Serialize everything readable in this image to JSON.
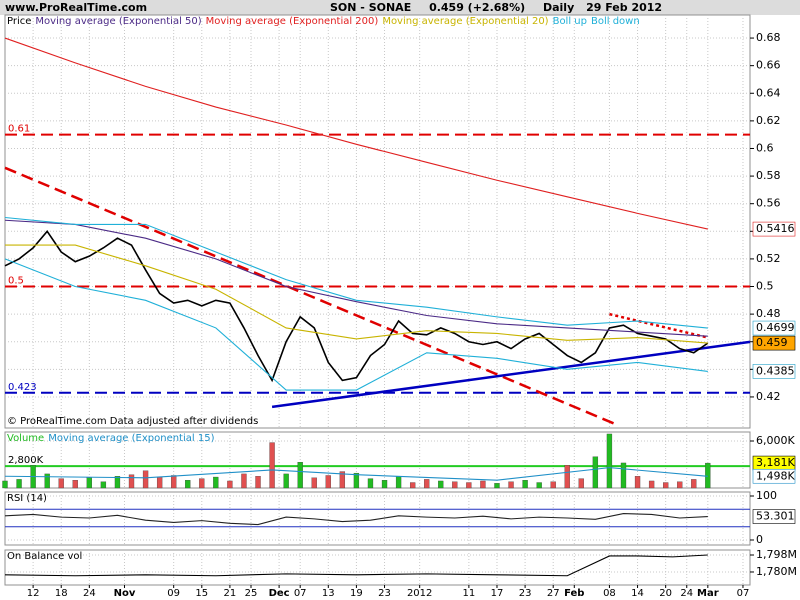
{
  "header": {
    "site": "www.ProRealTime.com",
    "title": "SON - SONAE",
    "price_text": "0.459 (+2.68%)",
    "period": "Daily",
    "date": "29 Feb 2012"
  },
  "chart_data": [
    {
      "type": "line",
      "note": "© ProRealTime.com Data adjusted after dividends",
      "grid": true,
      "xlim": [
        0,
        106
      ],
      "xticks": [
        {
          "value": 4,
          "label": "12"
        },
        {
          "value": 8,
          "label": "18"
        },
        {
          "value": 12,
          "label": "24"
        },
        {
          "value": 17,
          "label": "Nov"
        },
        {
          "value": 24,
          "label": "09"
        },
        {
          "value": 28,
          "label": "15"
        },
        {
          "value": 32,
          "label": "21"
        },
        {
          "value": 35,
          "label": "25"
        },
        {
          "value": 39,
          "label": "Dec"
        },
        {
          "value": 42,
          "label": "07"
        },
        {
          "value": 46,
          "label": "13"
        },
        {
          "value": 50,
          "label": "19"
        },
        {
          "value": 54,
          "label": "23"
        },
        {
          "value": 59,
          "label": "2012"
        },
        {
          "value": 66,
          "label": "11"
        },
        {
          "value": 70,
          "label": "17"
        },
        {
          "value": 74,
          "label": "23"
        },
        {
          "value": 78,
          "label": "27"
        },
        {
          "value": 81,
          "label": "Feb"
        },
        {
          "value": 86,
          "label": "08"
        },
        {
          "value": 90,
          "label": "14"
        },
        {
          "value": 94,
          "label": "20"
        },
        {
          "value": 97,
          "label": "24"
        },
        {
          "value": 100,
          "label": "Mar"
        },
        {
          "value": 105,
          "label": "07"
        }
      ],
      "ylim": [
        0.3975,
        0.6967
      ],
      "yticks": [
        0.42,
        0.44,
        0.46,
        0.48,
        0.5,
        0.52,
        0.54,
        0.56,
        0.58,
        0.6,
        0.62,
        0.64,
        0.66,
        0.68
      ],
      "series": [
        {
          "name": "Price",
          "color": "#000000",
          "x": [
            0,
            2,
            4,
            6,
            8,
            10,
            12,
            14,
            16,
            18,
            20,
            22,
            24,
            26,
            28,
            30,
            32,
            34,
            36,
            38,
            40,
            42,
            44,
            46,
            48,
            50,
            52,
            54,
            56,
            58,
            60,
            62,
            64,
            66,
            68,
            70,
            72,
            74,
            76,
            78,
            80,
            82,
            84,
            86,
            88,
            90,
            92,
            94,
            96,
            98,
            100
          ],
          "values": [
            0.515,
            0.52,
            0.528,
            0.54,
            0.525,
            0.518,
            0.522,
            0.528,
            0.535,
            0.53,
            0.512,
            0.495,
            0.488,
            0.49,
            0.486,
            0.49,
            0.488,
            0.47,
            0.45,
            0.432,
            0.46,
            0.478,
            0.47,
            0.445,
            0.432,
            0.434,
            0.45,
            0.458,
            0.475,
            0.466,
            0.465,
            0.47,
            0.466,
            0.46,
            0.458,
            0.46,
            0.455,
            0.462,
            0.466,
            0.458,
            0.45,
            0.445,
            0.452,
            0.47,
            0.472,
            0.466,
            0.464,
            0.462,
            0.455,
            0.452,
            0.459
          ]
        },
        {
          "name": "Moving average (Exponential 50)",
          "color": "#4b2a86",
          "x": [
            0,
            10,
            20,
            30,
            40,
            50,
            60,
            70,
            80,
            90,
            100
          ],
          "values": [
            0.548,
            0.545,
            0.535,
            0.52,
            0.5,
            0.489,
            0.479,
            0.473,
            0.47,
            0.467,
            0.464
          ]
        },
        {
          "name": "Moving average (Exponential 200)",
          "color": "#e02020",
          "x": [
            0,
            10,
            20,
            30,
            40,
            50,
            60,
            70,
            80,
            90,
            100
          ],
          "values": [
            0.68,
            0.662,
            0.645,
            0.63,
            0.617,
            0.603,
            0.59,
            0.577,
            0.565,
            0.553,
            0.5416
          ]
        },
        {
          "name": "Moving average (Exponential 20)",
          "color": "#c8b400",
          "x": [
            0,
            10,
            20,
            30,
            40,
            50,
            60,
            70,
            80,
            90,
            100
          ],
          "values": [
            0.53,
            0.53,
            0.515,
            0.498,
            0.47,
            0.462,
            0.468,
            0.466,
            0.461,
            0.463,
            0.459
          ]
        },
        {
          "name": "Boll up",
          "color": "#20b0d8",
          "x": [
            0,
            10,
            20,
            30,
            40,
            50,
            60,
            70,
            80,
            90,
            100
          ],
          "values": [
            0.55,
            0.545,
            0.545,
            0.525,
            0.505,
            0.49,
            0.485,
            0.478,
            0.472,
            0.475,
            0.4699
          ]
        },
        {
          "name": "Boll down",
          "color": "#20b0d8",
          "x": [
            0,
            10,
            20,
            30,
            40,
            50,
            60,
            70,
            80,
            90,
            100
          ],
          "values": [
            0.52,
            0.5,
            0.49,
            0.47,
            0.425,
            0.425,
            0.452,
            0.448,
            0.44,
            0.445,
            0.4385
          ]
        }
      ],
      "hlines": [
        {
          "value": 0.61,
          "color": "#e00000"
        },
        {
          "value": 0.5,
          "color": "#e00000"
        },
        {
          "value": 0.423,
          "color": "#0000c0"
        }
      ],
      "trendlines": [
        {
          "x": [
            0,
            87
          ],
          "y": [
            0.586,
            0.4
          ],
          "color": "#e00000",
          "style": "dashed"
        },
        {
          "x": [
            38,
            106
          ],
          "y": [
            0.4128,
            0.4599
          ],
          "color": "#0000c0",
          "style": "solid"
        },
        {
          "x": [
            86,
            100
          ],
          "y": [
            0.48,
            0.463
          ],
          "color": "#e00000",
          "style": "dotted"
        }
      ],
      "value_boxes": [
        {
          "value": 0.5416,
          "color": "#e02020",
          "bg": "#ffffff"
        },
        {
          "value": 0.4699,
          "color": "#20a0c8",
          "bg": "#ffffff"
        },
        {
          "value": 0.459,
          "color": "#000000",
          "bg": "#ffa500"
        },
        {
          "value": 0.4385,
          "color": "#20a0c8",
          "bg": "#ffffff"
        }
      ]
    },
    {
      "type": "bar",
      "grid": true,
      "xlim": [
        0,
        106
      ],
      "ylim": [
        0,
        7149
      ],
      "yticks": [
        {
          "value": 6000,
          "label": "6,000K"
        }
      ],
      "up_color": "#22bb22",
      "down_color": "#e05050",
      "series": [
        {
          "name": "Volume",
          "color": "#22bb22",
          "x": [
            0,
            2,
            4,
            6,
            8,
            10,
            12,
            14,
            16,
            18,
            20,
            22,
            24,
            26,
            28,
            30,
            32,
            34,
            36,
            38,
            40,
            42,
            44,
            46,
            48,
            50,
            52,
            54,
            56,
            58,
            60,
            62,
            64,
            66,
            68,
            70,
            72,
            74,
            76,
            78,
            80,
            82,
            84,
            86,
            88,
            90,
            92,
            94,
            96,
            98,
            100
          ],
          "values": [
            900,
            1100,
            2900,
            1800,
            1200,
            1000,
            1300,
            800,
            1500,
            1700,
            2200,
            1400,
            1600,
            1000,
            1200,
            1400,
            900,
            1800,
            1500,
            5800,
            1800,
            3300,
            1300,
            1600,
            2100,
            1900,
            1200,
            1000,
            1500,
            700,
            1100,
            900,
            800,
            700,
            900,
            600,
            800,
            1000,
            700,
            800,
            2900,
            1200,
            4000,
            6900,
            3200,
            1500,
            900,
            700,
            800,
            1100,
            3181
          ]
        },
        {
          "name": "Moving average (Exponential 15)",
          "color": "#2090c8",
          "x": [
            0,
            20,
            38,
            50,
            70,
            86,
            100
          ],
          "values": [
            1500,
            1300,
            2300,
            1700,
            1000,
            2600,
            1498
          ]
        }
      ],
      "hlines": [
        {
          "value": 2800,
          "label": "2,800K",
          "color": "#22cc22"
        }
      ],
      "value_boxes": [
        {
          "value": 3181,
          "label": "3,181K",
          "color": "#000000",
          "bg": "#ffff00"
        },
        {
          "value": 1498,
          "label": "1,498K",
          "color": "#2090c8",
          "bg": "#ffffff"
        }
      ]
    },
    {
      "type": "line",
      "grid": true,
      "xlim": [
        0,
        106
      ],
      "ylim": [
        -11.4,
        109.1
      ],
      "yticks": [
        0,
        100
      ],
      "series": [
        {
          "name": "RSI (14)",
          "color": "#222222",
          "x": [
            0,
            4,
            8,
            12,
            16,
            20,
            24,
            28,
            32,
            36,
            40,
            44,
            48,
            52,
            56,
            60,
            64,
            68,
            72,
            76,
            80,
            84,
            88,
            92,
            96,
            100
          ],
          "values": [
            55,
            58,
            52,
            50,
            56,
            45,
            40,
            44,
            38,
            35,
            52,
            48,
            42,
            45,
            55,
            52,
            50,
            54,
            48,
            52,
            50,
            47,
            60,
            58,
            50,
            53.301
          ]
        }
      ],
      "levels": [
        {
          "value": 70,
          "color": "#2030c0"
        },
        {
          "value": 30,
          "color": "#2030c0"
        }
      ],
      "value_boxes": [
        {
          "value": 53.301,
          "color": "#000000",
          "bg": "#ffffff"
        }
      ]
    },
    {
      "type": "line",
      "grid": true,
      "xlim": [
        0,
        106
      ],
      "ylim": [
        1766.2,
        1803.3
      ],
      "yticks": [
        {
          "value": 1798,
          "label": "1,798M"
        },
        {
          "value": 1780,
          "label": "1,780M"
        }
      ],
      "series": [
        {
          "name": "On Balance vol",
          "color": "#000000",
          "x": [
            0,
            10,
            20,
            30,
            40,
            50,
            60,
            70,
            80,
            86,
            90,
            95,
            100
          ],
          "values": [
            1777,
            1776,
            1777,
            1776,
            1778,
            1777,
            1778,
            1777,
            1776,
            1797,
            1797,
            1796,
            1798
          ]
        }
      ]
    }
  ]
}
